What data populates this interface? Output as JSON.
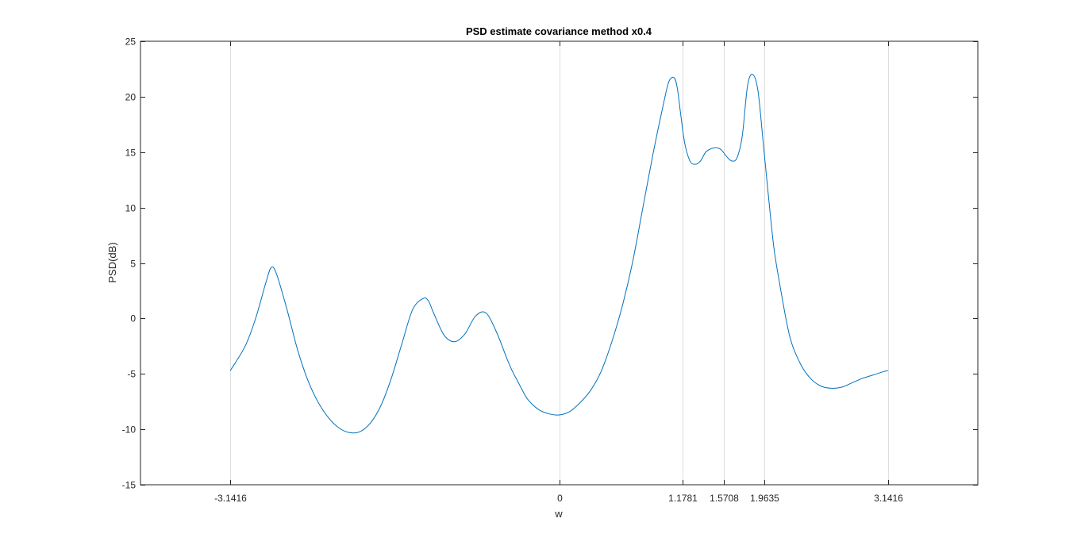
{
  "chart_data": {
    "type": "line",
    "title": "PSD estimate covariance method x0.4",
    "xlabel": "w",
    "ylabel": "PSD(dB)",
    "xlim": [
      -4.0,
      4.0
    ],
    "ylim": [
      -15,
      25
    ],
    "xticks": [
      -3.1416,
      0,
      1.1781,
      1.5708,
      1.9635,
      3.1416
    ],
    "xtick_labels": [
      "-3.1416",
      "0",
      "1.1781",
      "1.5708",
      "1.9635",
      "3.1416"
    ],
    "yticks": [
      -15,
      -10,
      -5,
      0,
      5,
      10,
      15,
      20,
      25
    ],
    "ytick_labels": [
      "-15",
      "-10",
      "-5",
      "0",
      "5",
      "10",
      "15",
      "20",
      "25"
    ],
    "grid": "x-only",
    "series": [
      {
        "color": "#0072BD",
        "x": [
          -3.1416,
          -3.0,
          -2.9,
          -2.8,
          -2.75,
          -2.7,
          -2.6,
          -2.5,
          -2.4,
          -2.3,
          -2.2,
          -2.1,
          -2.0,
          -1.9,
          -1.8,
          -1.7,
          -1.6,
          -1.5,
          -1.4,
          -1.3,
          -1.25,
          -1.2,
          -1.1,
          -1.0,
          -0.9,
          -0.8,
          -0.7,
          -0.6,
          -0.5,
          -0.45,
          -0.4,
          -0.35,
          -0.3,
          -0.2,
          -0.1,
          0.0,
          0.1,
          0.2,
          0.3,
          0.4,
          0.5,
          0.6,
          0.7,
          0.8,
          0.9,
          1.0,
          1.05,
          1.1,
          1.13,
          1.16,
          1.2,
          1.25,
          1.3,
          1.35,
          1.4,
          1.45,
          1.5,
          1.55,
          1.6,
          1.65,
          1.7,
          1.75,
          1.8,
          1.85,
          1.9,
          1.95,
          2.0,
          2.05,
          2.1,
          2.2,
          2.3,
          2.4,
          2.5,
          2.6,
          2.7,
          2.8,
          2.9,
          3.0,
          3.1,
          3.1416
        ],
        "y": [
          -4.7,
          -2.5,
          0.0,
          3.3,
          4.6,
          4.0,
          0.8,
          -2.8,
          -5.6,
          -7.6,
          -9.0,
          -9.9,
          -10.3,
          -10.2,
          -9.4,
          -7.8,
          -5.3,
          -2.2,
          0.8,
          1.8,
          1.6,
          0.5,
          -1.5,
          -2.1,
          -1.4,
          0.2,
          0.5,
          -1.2,
          -3.6,
          -4.7,
          -5.6,
          -6.5,
          -7.3,
          -8.2,
          -8.6,
          -8.7,
          -8.4,
          -7.6,
          -6.5,
          -4.8,
          -2.2,
          1.0,
          5.0,
          10.0,
          15.0,
          19.5,
          21.4,
          21.7,
          20.7,
          18.5,
          15.8,
          14.2,
          13.9,
          14.2,
          15.0,
          15.3,
          15.4,
          15.2,
          14.6,
          14.2,
          14.5,
          16.5,
          21.0,
          22.0,
          20.5,
          15.8,
          11.0,
          6.5,
          3.5,
          -1.5,
          -4.0,
          -5.4,
          -6.1,
          -6.3,
          -6.2,
          -5.8,
          -5.4,
          -5.1,
          -4.8,
          -4.7
        ]
      }
    ]
  }
}
